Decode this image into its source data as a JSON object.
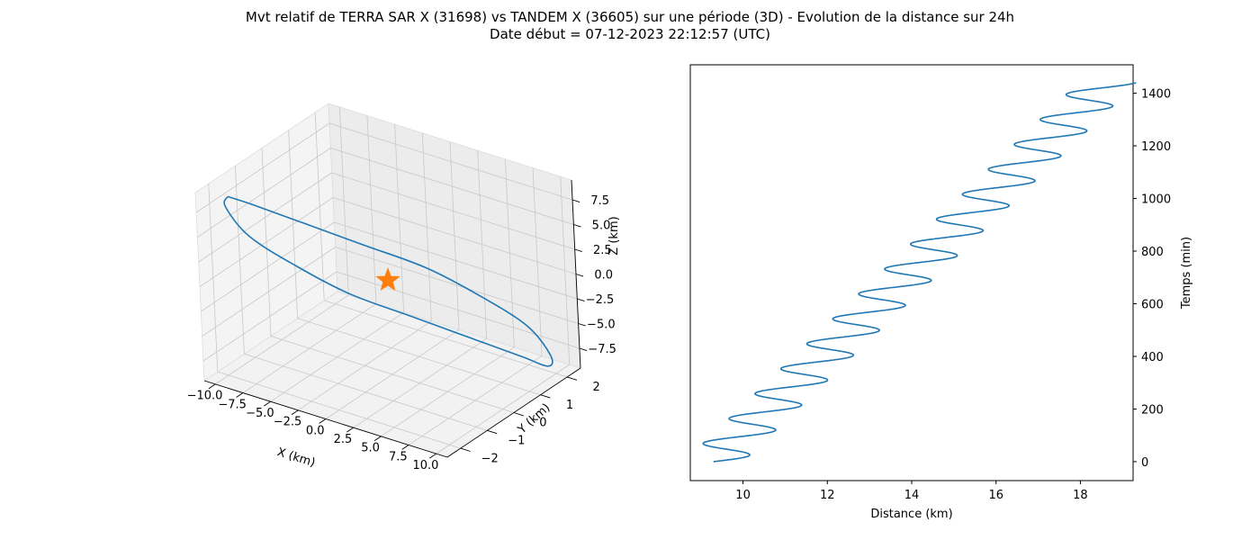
{
  "figure": {
    "title_line1": "Mvt relatif de TERRA SAR X (31698) vs TANDEM X (36605) sur une période (3D) - Evolution de la distance sur 24h",
    "title_line2": "Date début = 07-12-2023 22:12:57 (UTC)"
  },
  "colors": {
    "series": "#1f77b4",
    "marker": "#ff7f0e",
    "pane": "#f2f2f2",
    "grid": "#c8c8c8"
  },
  "chart_data": [
    {
      "type": "line",
      "projection": "3d",
      "title": "",
      "xlabel": "X (km)",
      "ylabel": "Y (km)",
      "zlabel": "Z (km)",
      "xlim": [
        -11,
        11
      ],
      "ylim": [
        -2.5,
        2.5
      ],
      "zlim": [
        -9.5,
        9.5
      ],
      "xticks": [
        -10.0,
        -7.5,
        -5.0,
        -2.5,
        0.0,
        2.5,
        5.0,
        7.5,
        10.0
      ],
      "xtick_labels": [
        "−10.0",
        "−7.5",
        "−5.0",
        "−2.5",
        "0.0",
        "2.5",
        "5.0",
        "7.5",
        "10.0"
      ],
      "yticks": [
        -2,
        -1,
        0,
        1,
        2
      ],
      "ytick_labels": [
        "−2",
        "−1",
        "0",
        "1",
        "2"
      ],
      "zticks": [
        -7.5,
        -5.0,
        -2.5,
        0.0,
        2.5,
        5.0,
        7.5
      ],
      "ztick_labels": [
        "−7.5",
        "−5.0",
        "−2.5",
        "0.0",
        "2.5",
        "5.0",
        "7.5"
      ],
      "grid": true,
      "series": [
        {
          "description": "closed relative-motion ellipse",
          "points": [
            [
              -9.3,
              -2.0,
              8.8
            ],
            [
              -8.0,
              -1.6,
              7.7
            ],
            [
              -5.5,
              -0.8,
              5.3
            ],
            [
              -2.5,
              0.2,
              2.3
            ],
            [
              0.5,
              1.2,
              -0.7
            ],
            [
              3.5,
              1.9,
              -3.7
            ],
            [
              6.5,
              2.4,
              -6.6
            ],
            [
              8.8,
              2.3,
              -8.6
            ],
            [
              9.3,
              2.0,
              -9.0
            ],
            [
              8.0,
              1.6,
              -7.8
            ],
            [
              5.5,
              0.8,
              -5.4
            ],
            [
              2.5,
              -0.2,
              -2.4
            ],
            [
              -0.5,
              -1.2,
              0.6
            ],
            [
              -3.5,
              -1.9,
              3.6
            ],
            [
              -6.5,
              -2.4,
              6.5
            ],
            [
              -8.8,
              -2.3,
              8.5
            ],
            [
              -9.3,
              -2.0,
              8.8
            ]
          ]
        }
      ],
      "markers": [
        {
          "description": "TERRA SAR X reference position",
          "shape": "star",
          "point": [
            0,
            0,
            0
          ]
        }
      ]
    },
    {
      "type": "line",
      "title": "",
      "xlabel": "Distance (km)",
      "ylabel": "Temps (min)",
      "y_axis_side": "right",
      "xlim": [
        8.75,
        19.25
      ],
      "ylim": [
        -72,
        1508
      ],
      "xticks": [
        10,
        12,
        14,
        16,
        18
      ],
      "yticks": [
        0,
        200,
        400,
        600,
        800,
        1000,
        1200,
        1400
      ],
      "grid": false,
      "series": [
        {
          "name": "",
          "generator": {
            "description": "distance grows linearly while oscillating once per orbit",
            "t_start_min": 0,
            "t_end_min": 1440,
            "d_start_km": 9.3,
            "d_end_km": 18.65,
            "oscillation_amplitude_km": 0.7,
            "orbit_period_min": 94.7
          }
        }
      ]
    }
  ]
}
